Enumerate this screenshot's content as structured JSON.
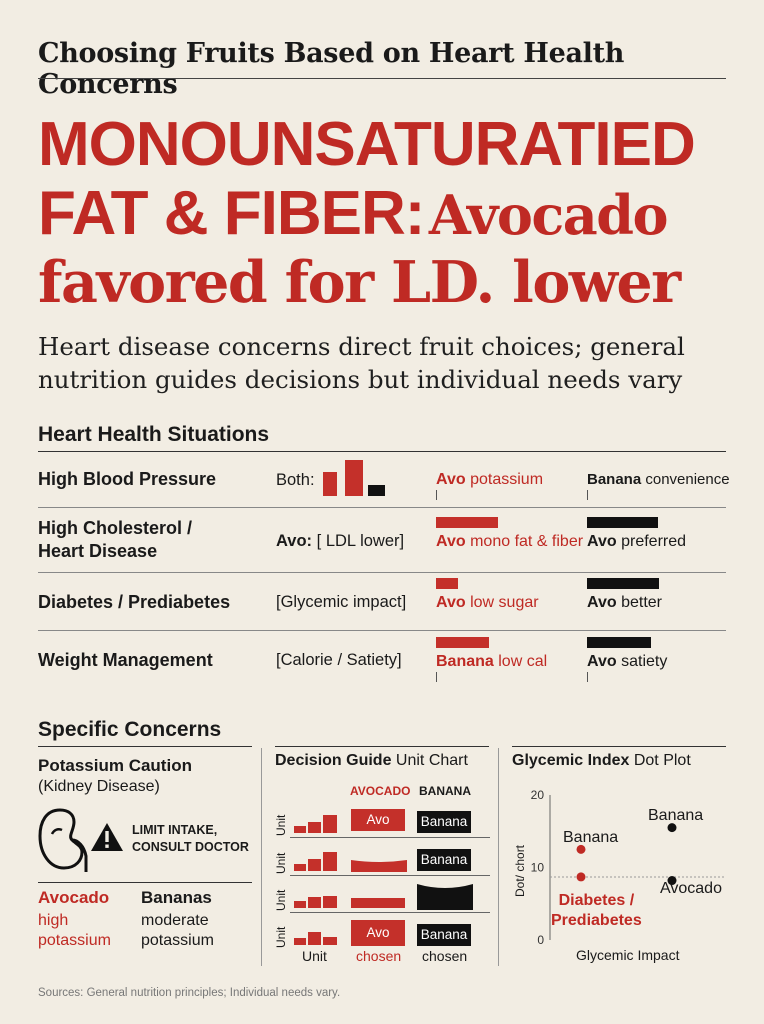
{
  "top_title": "Choosing Fruits Based on Heart Health Concerns",
  "headline": {
    "line1": "MONOUNSATURATIED",
    "line2_sans": "FAT & FIBER:",
    "line2_serif": "Avocado",
    "line3": "favored for LD. lower"
  },
  "subtitle": "Heart disease concerns direct fruit choices; general nutrition guides decisions but individual needs vary",
  "situations": {
    "title": "Heart Health Situations",
    "rows": [
      {
        "label": "High Blood Pressure",
        "mid": "Both:",
        "red_bold": "Avo",
        "red_rest": "potassium",
        "blk_bold": "Banana",
        "blk_rest": "convenience"
      },
      {
        "label": "High Cholesterol / Heart Disease",
        "mid_bold": "Avo:",
        "mid_rest": "[ LDL lower]",
        "red_bold": "Avo",
        "red_rest": "mono fat & fiber",
        "blk_bold": "Avo",
        "blk_rest": "preferred"
      },
      {
        "label": "Diabetes / Prediabetes",
        "mid": "[Glycemic impact]",
        "red_bold": "Avo",
        "red_rest": "low sugar",
        "blk_bold": "Avo",
        "blk_rest": "better"
      },
      {
        "label": "Weight Management",
        "mid": "[Calorie / Satiety]",
        "red_bold": "Banana",
        "red_rest": "low cal",
        "blk_bold": "Avo",
        "blk_rest": "satiety"
      }
    ]
  },
  "concerns": {
    "title": "Specific Concerns",
    "potassium": {
      "title": "Potassium Caution",
      "sub": "(Kidney Disease)",
      "warning": "LIMIT INTAKE, CONSULT DOCTOR",
      "avocado_title": "Avocado",
      "avocado_desc_1": "high",
      "avocado_desc_2": "potassium",
      "bananas_title": "Bananas",
      "bananas_desc_1": "moderate",
      "bananas_desc_2": "potassium"
    },
    "decision": {
      "title_bold": "Decision Guide",
      "title_rest": "Unit Chart",
      "col_avocado": "AVOCADO",
      "col_banana": "BANANA",
      "row_axis": "Unit",
      "avo_box": "Avo",
      "banana_box": "Banana",
      "foot_unit": "Unit",
      "foot_chosen_red": "chosen",
      "foot_chosen_blk": "chosen"
    },
    "glycemic": {
      "title_bold": "Glycemic Index",
      "title_rest": "Dot Plot",
      "ylabel": "Dot/ chort",
      "xlabel": "Glycemic Impact",
      "ticks": [
        "20",
        "10",
        "0"
      ],
      "label_banana_top": "Banana",
      "label_banana_red": "Banana",
      "label_avocado": "Avocado",
      "label_diabetes_1": "Diabetes /",
      "label_diabetes_2": "Prediabetes"
    }
  },
  "sources": "Sources: General nutrition principles; Individual needs vary.",
  "chart_data": [
    {
      "type": "scatter",
      "title": "Glycemic Index Dot Plot",
      "xlabel": "Glycemic Impact",
      "ylabel": "Dot/ chort",
      "ylim": [
        0,
        20
      ],
      "points": [
        {
          "label": "Banana",
          "x": 0.8,
          "y": 15.5,
          "color": "#111111"
        },
        {
          "label": "Banana",
          "x": 0.15,
          "y": 12.5,
          "color": "#bf2a24"
        },
        {
          "label": "Avocado",
          "x": 0.8,
          "y": 8.2,
          "color": "#111111"
        },
        {
          "label": "Diabetes / Prediabetes",
          "x": 0.15,
          "y": 8.7,
          "color": "#bf2a24"
        }
      ]
    }
  ],
  "colors": {
    "accent": "#bf2a24",
    "background": "#f2ede3",
    "ink": "#111111"
  }
}
